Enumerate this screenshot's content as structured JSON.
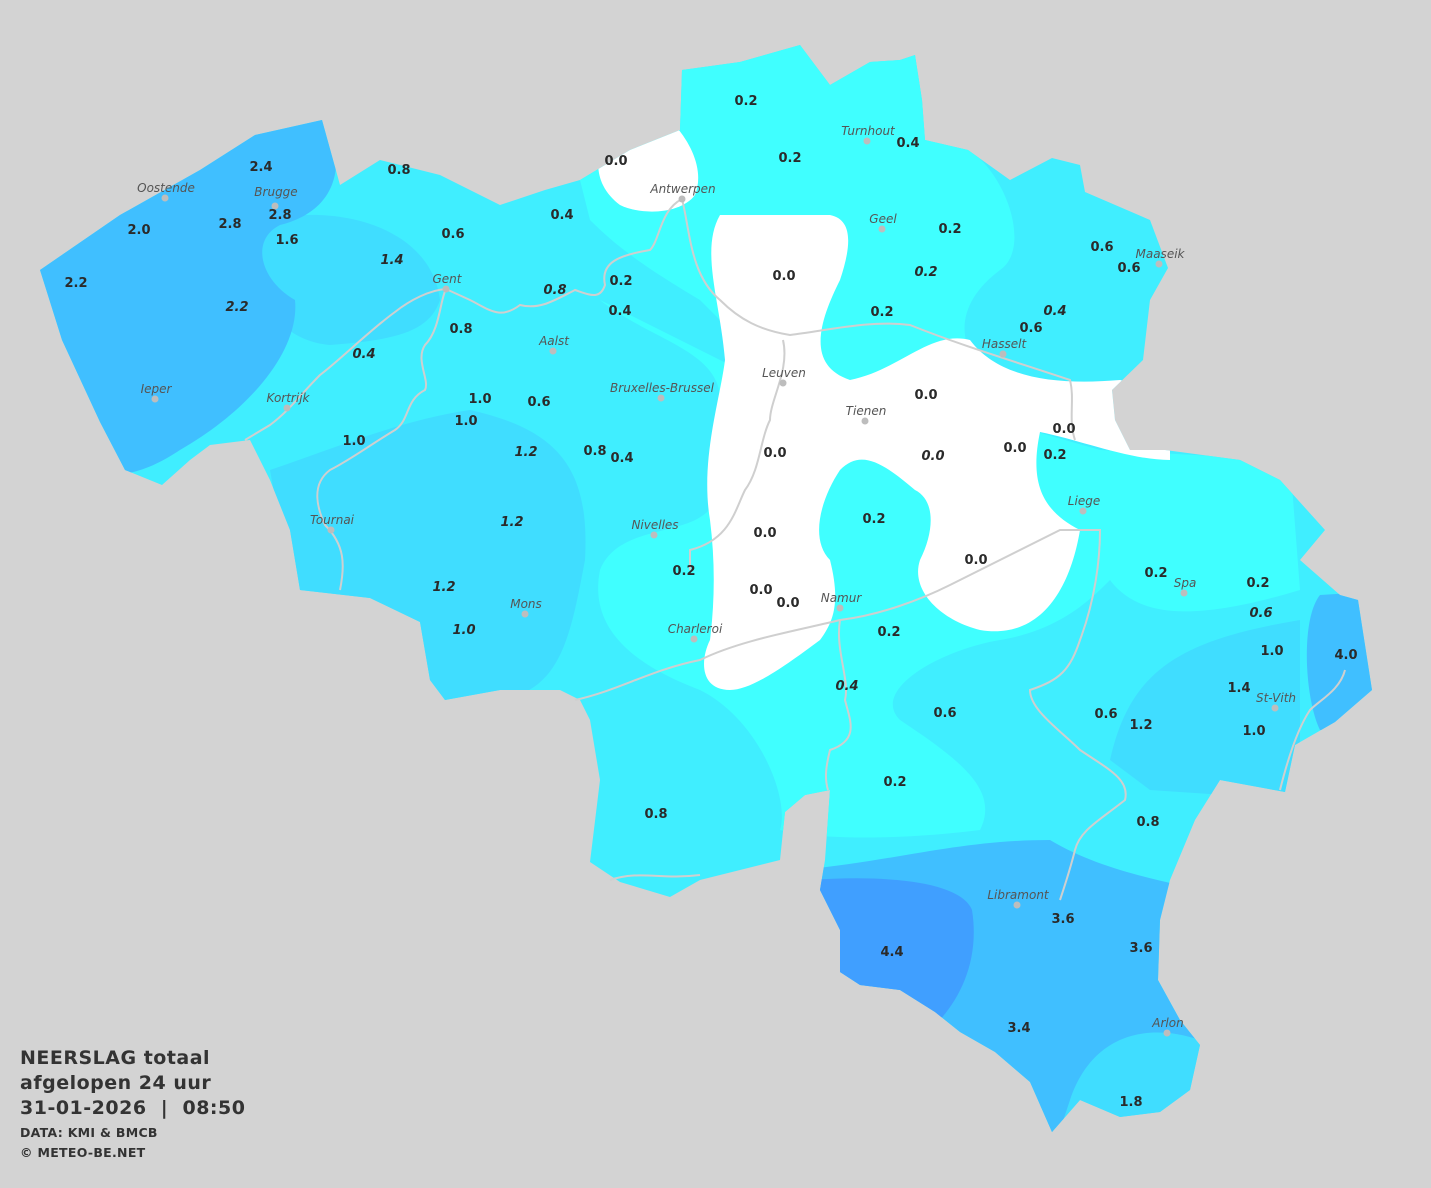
{
  "legend": {
    "title_line1": "NEERSLAG totaal",
    "title_line2": "afgelopen 24 uur",
    "date": "31-01-2026",
    "separator": "|",
    "time": "08:50",
    "source": "DATA: KMI & BMCB",
    "copyright": "© METEO-BE.NET"
  },
  "colors": {
    "background": "#d3d3d3",
    "zero": "#ffffff",
    "light": "#40ffff",
    "low": "#40eeff",
    "medium": "#40ddff",
    "high": "#40bfff",
    "very_high": "#409fff",
    "label": "#2a2a2a",
    "city_label": "#555555"
  },
  "cities": [
    "Oostende",
    "Brugge",
    "Antwerpen",
    "Turnhout",
    "Geel",
    "Maaseik",
    "Gent",
    "Aalst",
    "Hasselt",
    "Leuven",
    "Ieper",
    "Kortrijk",
    "Bruxelles-Brussel",
    "Tienen",
    "Liege",
    "Tournai",
    "Nivelles",
    "Spa",
    "Namur",
    "Mons",
    "Charleroi",
    "St-Vith",
    "Libramont",
    "Arlon"
  ],
  "precip_values": [
    {
      "v": "0.2",
      "italic": false
    },
    {
      "v": "0.2",
      "italic": false
    },
    {
      "v": "0.4",
      "italic": false
    },
    {
      "v": "0.0",
      "italic": false
    },
    {
      "v": "0.4",
      "italic": false
    },
    {
      "v": "0.8",
      "italic": false
    },
    {
      "v": "2.4",
      "italic": false
    },
    {
      "v": "2.8",
      "italic": false
    },
    {
      "v": "2.0",
      "italic": false
    },
    {
      "v": "2.8",
      "italic": false
    },
    {
      "v": "1.6",
      "italic": false
    },
    {
      "v": "0.6",
      "italic": false
    },
    {
      "v": "2.2",
      "italic": false
    },
    {
      "v": "1.4",
      "italic": true
    },
    {
      "v": "2.2",
      "italic": true
    },
    {
      "v": "0.8",
      "italic": true
    },
    {
      "v": "0.2",
      "italic": false
    },
    {
      "v": "0.4",
      "italic": false
    },
    {
      "v": "0.8",
      "italic": false
    },
    {
      "v": "0.4",
      "italic": true
    },
    {
      "v": "0.0",
      "italic": false
    },
    {
      "v": "0.2",
      "italic": false
    },
    {
      "v": "0.2",
      "italic": true
    },
    {
      "v": "0.2",
      "italic": false
    },
    {
      "v": "0.6",
      "italic": false
    },
    {
      "v": "0.6",
      "italic": false
    },
    {
      "v": "0.4",
      "italic": true
    },
    {
      "v": "0.6",
      "italic": false
    },
    {
      "v": "1.0",
      "italic": false
    },
    {
      "v": "0.6",
      "italic": false
    },
    {
      "v": "1.0",
      "italic": false
    },
    {
      "v": "1.0",
      "italic": false
    },
    {
      "v": "1.2",
      "italic": true
    },
    {
      "v": "0.8",
      "italic": false
    },
    {
      "v": "0.4",
      "italic": false
    },
    {
      "v": "0.0",
      "italic": false
    },
    {
      "v": "0.0",
      "italic": false
    },
    {
      "v": "0.0",
      "italic": true
    },
    {
      "v": "0.0",
      "italic": false
    },
    {
      "v": "0.0",
      "italic": false
    },
    {
      "v": "0.2",
      "italic": false
    },
    {
      "v": "1.2",
      "italic": true
    },
    {
      "v": "0.2",
      "italic": false
    },
    {
      "v": "0.0",
      "italic": false
    },
    {
      "v": "0.0",
      "italic": false
    },
    {
      "v": "0.2",
      "italic": false
    },
    {
      "v": "1.2",
      "italic": true
    },
    {
      "v": "0.0",
      "italic": false
    },
    {
      "v": "0.0",
      "italic": false
    },
    {
      "v": "0.2",
      "italic": false
    },
    {
      "v": "0.2",
      "italic": false
    },
    {
      "v": "0.6",
      "italic": true
    },
    {
      "v": "1.0",
      "italic": true
    },
    {
      "v": "0.2",
      "italic": false
    },
    {
      "v": "1.0",
      "italic": false
    },
    {
      "v": "4.0",
      "italic": false
    },
    {
      "v": "0.4",
      "italic": true
    },
    {
      "v": "1.4",
      "italic": false
    },
    {
      "v": "0.6",
      "italic": false
    },
    {
      "v": "0.6",
      "italic": false
    },
    {
      "v": "1.2",
      "italic": false
    },
    {
      "v": "1.0",
      "italic": false
    },
    {
      "v": "0.2",
      "italic": false
    },
    {
      "v": "0.8",
      "italic": false
    },
    {
      "v": "0.8",
      "italic": false
    },
    {
      "v": "3.6",
      "italic": false
    },
    {
      "v": "3.6",
      "italic": false
    },
    {
      "v": "4.4",
      "italic": false
    },
    {
      "v": "3.4",
      "italic": false
    },
    {
      "v": "1.8",
      "italic": false
    }
  ]
}
